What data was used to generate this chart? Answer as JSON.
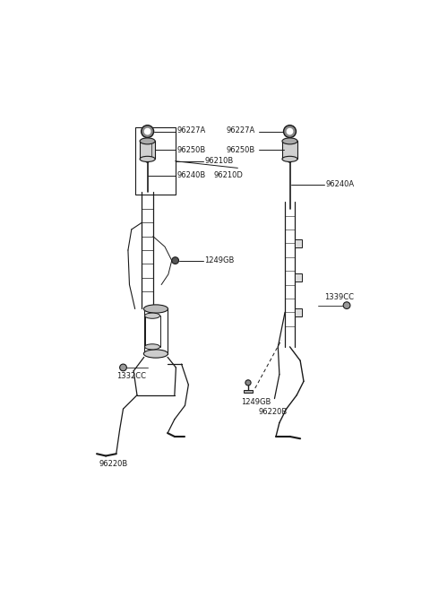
{
  "bg_color": "#ffffff",
  "lc": "#1a1a1a",
  "fig_w": 4.8,
  "fig_h": 6.57,
  "dpi": 100,
  "fs": 6.0,
  "fw": "normal"
}
